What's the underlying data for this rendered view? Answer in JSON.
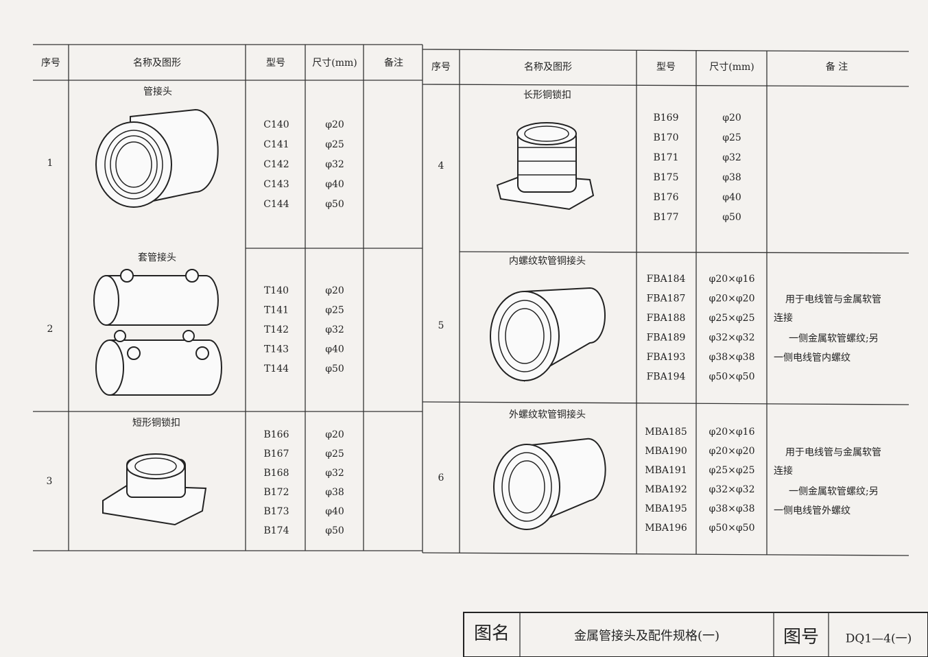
{
  "header": {
    "columns_left": [
      "序号",
      "名称及图形",
      "型号",
      "尺寸(mm)",
      "备注"
    ],
    "columns_right": [
      "序号",
      "名称及图形",
      "型号",
      "尺寸(mm)",
      "备 注"
    ]
  },
  "table": {
    "rows": [
      {
        "no": "1",
        "name": "管接头",
        "models": [
          "C140",
          "C141",
          "C142",
          "C143",
          "C144"
        ],
        "sizes": [
          "φ20",
          "φ25",
          "φ32",
          "φ40",
          "φ50"
        ]
      },
      {
        "no": "2",
        "name": "套管接头",
        "models": [
          "T140",
          "T141",
          "T142",
          "T143",
          "T144"
        ],
        "sizes": [
          "φ20",
          "φ25",
          "φ32",
          "φ40",
          "φ50"
        ]
      },
      {
        "no": "3",
        "name": "短形铜锁扣",
        "models": [
          "B166",
          "B167",
          "B168",
          "B172",
          "B173",
          "B174"
        ],
        "sizes": [
          "φ20",
          "φ25",
          "φ32",
          "φ38",
          "φ40",
          "φ50"
        ]
      },
      {
        "no": "4",
        "name": "长形铜锁扣",
        "models": [
          "B169",
          "B170",
          "B171",
          "B175",
          "B176",
          "B177"
        ],
        "sizes": [
          "φ20",
          "φ25",
          "φ32",
          "φ38",
          "φ40",
          "φ50"
        ]
      },
      {
        "no": "5",
        "name": "内螺纹软管铜接头",
        "models": [
          "FBA184",
          "FBA187",
          "FBA188",
          "FBA189",
          "FBA193",
          "FBA194"
        ],
        "sizes": [
          "φ20×φ16",
          "φ20×φ20",
          "φ25×φ25",
          "φ32×φ32",
          "φ38×φ38",
          "φ50×φ50"
        ],
        "note": [
          "用于电线管与金属软管",
          "连接",
          "一侧金属软管螺纹;另",
          "一侧电线管内螺纹"
        ]
      },
      {
        "no": "6",
        "name": "外螺纹软管铜接头",
        "models": [
          "MBA185",
          "MBA190",
          "MBA191",
          "MBA192",
          "MBA195",
          "MBA196"
        ],
        "sizes": [
          "φ20×φ16",
          "φ20×φ20",
          "φ25×φ25",
          "φ32×φ32",
          "φ38×φ38",
          "φ50×φ50"
        ],
        "note": [
          "用于电线管与金属软管",
          "连接",
          "一侧金属软管螺纹;另",
          "一侧电线管外螺纹"
        ]
      }
    ]
  },
  "footer": {
    "name_label": "图名",
    "title": "金属管接头及配件规格(一)",
    "code_label": "图号",
    "code": "DQ1—4(一)"
  }
}
